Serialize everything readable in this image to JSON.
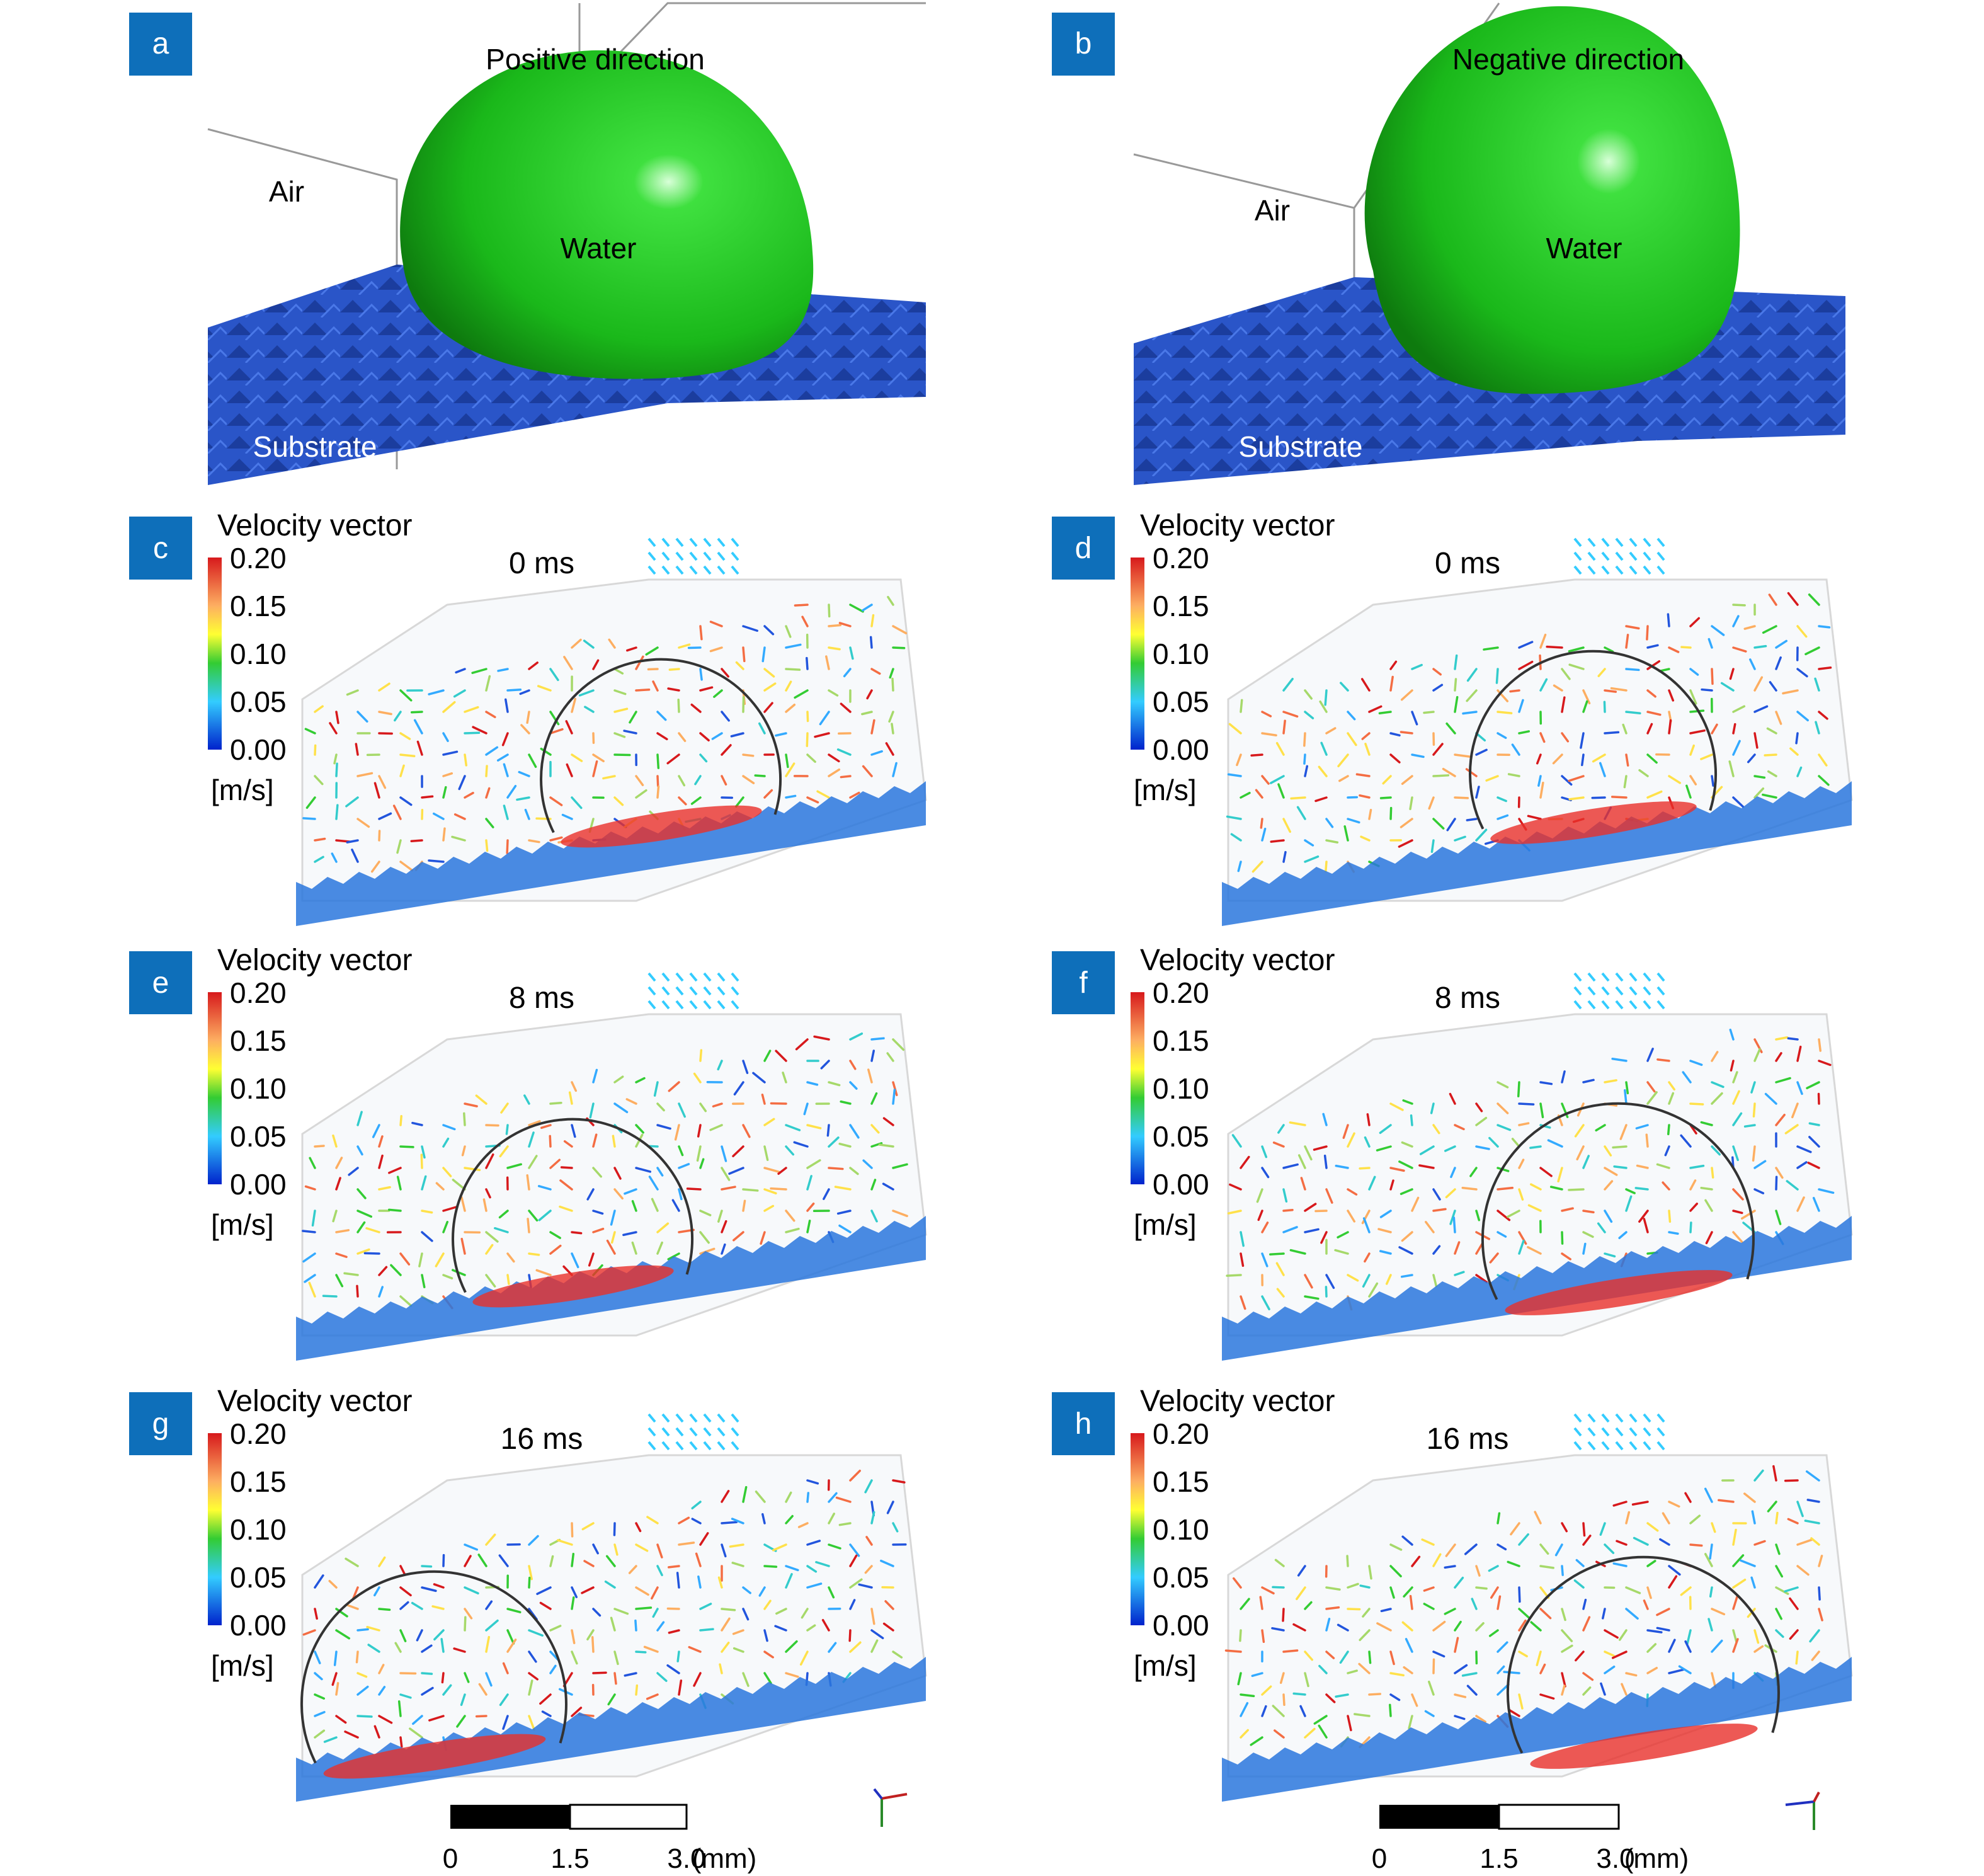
{
  "colors": {
    "label_bg": "#0e6fba",
    "water": "#1fbf1f",
    "substrate": "#2a55c8",
    "outline": "#333333"
  },
  "panels": [
    {
      "id": "a",
      "direction": "Positive direction",
      "air": "Air",
      "water": "Water",
      "substrate": "Substrate"
    },
    {
      "id": "b",
      "direction": "Negative direction",
      "air": "Air",
      "water": "Water",
      "substrate": "Substrate"
    }
  ],
  "vector_panels": [
    {
      "id": "c",
      "time": "0 ms"
    },
    {
      "id": "d",
      "time": "0 ms"
    },
    {
      "id": "e",
      "time": "8 ms"
    },
    {
      "id": "f",
      "time": "8 ms"
    },
    {
      "id": "g",
      "time": "16 ms"
    },
    {
      "id": "h",
      "time": "16 ms"
    }
  ],
  "colorbar": {
    "title": "Velocity vector",
    "ticks": [
      "0.20",
      "0.15",
      "0.10",
      "0.05",
      "0.00"
    ],
    "unit": "[m/s]"
  },
  "scalebar": {
    "ticks": [
      "0",
      "1.5",
      "3.0"
    ],
    "unit": "(mm)"
  }
}
